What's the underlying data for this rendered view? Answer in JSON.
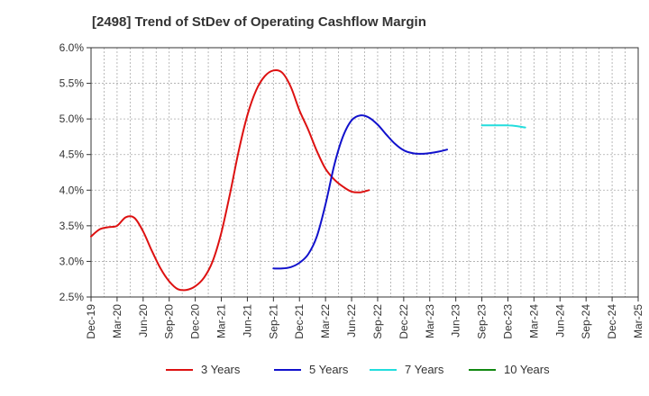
{
  "chart_data": {
    "type": "line",
    "title": "[2498]  Trend of StDev of Operating Cashflow Margin",
    "xlabel": "",
    "ylabel": "",
    "x_ticks": [
      "Dec-19",
      "Mar-20",
      "Jun-20",
      "Sep-20",
      "Dec-20",
      "Mar-21",
      "Jun-21",
      "Sep-21",
      "Dec-21",
      "Mar-22",
      "Jun-22",
      "Sep-22",
      "Dec-22",
      "Mar-23",
      "Jun-23",
      "Sep-23",
      "Dec-23",
      "Mar-24",
      "Jun-24",
      "Sep-24",
      "Dec-24",
      "Mar-25"
    ],
    "y_ticks": [
      "2.5%",
      "3.0%",
      "3.5%",
      "4.0%",
      "4.5%",
      "5.0%",
      "5.5%",
      "6.0%"
    ],
    "ylim": [
      2.5,
      6.0
    ],
    "y_unit": "%",
    "grid": true,
    "legend_position": "bottom",
    "series": [
      {
        "name": "3 Years",
        "color": "#dd1111",
        "start": "Dec-19",
        "values": [
          3.35,
          3.45,
          3.48,
          3.5,
          3.62,
          3.61,
          3.42,
          3.15,
          2.9,
          2.72,
          2.61,
          2.6,
          2.65,
          2.77,
          3.0,
          3.4,
          3.95,
          4.55,
          5.05,
          5.4,
          5.6,
          5.68,
          5.65,
          5.45,
          5.12,
          4.85,
          4.55,
          4.3,
          4.15,
          4.05,
          3.98,
          3.97,
          4.0
        ]
      },
      {
        "name": "5 Years",
        "color": "#1111cc",
        "start": "Sep-21",
        "values": [
          2.9,
          2.9,
          2.92,
          2.98,
          3.1,
          3.35,
          3.8,
          4.35,
          4.75,
          4.98,
          5.05,
          5.02,
          4.92,
          4.78,
          4.65,
          4.56,
          4.52,
          4.51,
          4.52,
          4.54,
          4.57
        ]
      },
      {
        "name": "7 Years",
        "color": "#22dddd",
        "start": "Sep-23",
        "values": [
          4.91,
          4.91,
          4.91,
          4.91,
          4.9,
          4.88
        ]
      },
      {
        "name": "10 Years",
        "color": "#118811",
        "start": "Sep-23",
        "values": []
      }
    ]
  }
}
